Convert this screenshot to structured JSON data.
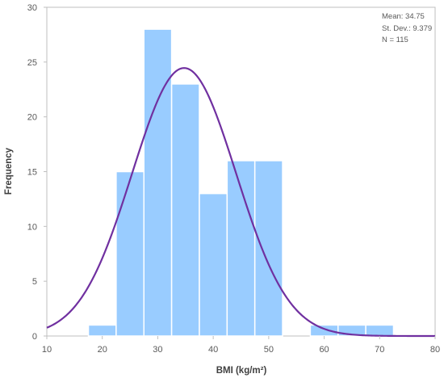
{
  "chart_data": {
    "type": "bar",
    "subtype": "histogram with fitted normal curve",
    "xlabel": "BMI (kg/m²)",
    "ylabel": "Frequency",
    "xlim": [
      10,
      80
    ],
    "ylim": [
      0,
      30
    ],
    "x_ticks": [
      "10",
      "20",
      "30",
      "40",
      "50",
      "60",
      "70",
      "80"
    ],
    "y_ticks": [
      "0",
      "5",
      "10",
      "15",
      "20",
      "25",
      "30"
    ],
    "bins": [
      {
        "from": 17.5,
        "to": 22.5,
        "count": 1
      },
      {
        "from": 22.5,
        "to": 27.5,
        "count": 15
      },
      {
        "from": 27.5,
        "to": 32.5,
        "count": 28
      },
      {
        "from": 32.5,
        "to": 37.5,
        "count": 23
      },
      {
        "from": 37.5,
        "to": 42.5,
        "count": 13
      },
      {
        "from": 42.5,
        "to": 47.5,
        "count": 16
      },
      {
        "from": 47.5,
        "to": 52.5,
        "count": 16
      },
      {
        "from": 52.5,
        "to": 57.5,
        "count": 0
      },
      {
        "from": 57.5,
        "to": 62.5,
        "count": 1
      },
      {
        "from": 62.5,
        "to": 67.5,
        "count": 1
      },
      {
        "from": 67.5,
        "to": 72.5,
        "count": 1
      }
    ],
    "normal_curve": {
      "mean": 34.75,
      "sd": 9.379,
      "n": 115,
      "bin_width": 5
    },
    "stats": {
      "mean_label": "Mean: 34.75",
      "sd_label": "St. Dev.: 9.379",
      "n_label": "N = 115"
    },
    "grid": false,
    "colors": {
      "bar": "#99ccff",
      "bar_edge": "#ffffff",
      "curve": "#7030a0",
      "axis": "#bfbfbf"
    }
  }
}
